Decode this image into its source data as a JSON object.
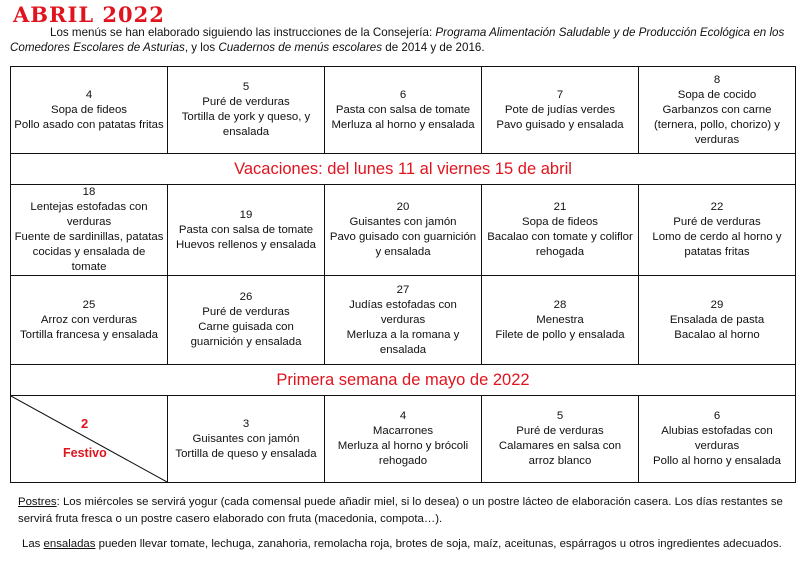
{
  "title": "ABRIL 2022",
  "intro": {
    "p1": "Los menús se han elaborado siguiendo las instrucciones de la Consejería: ",
    "i1": "Programa Alimentación Saludable y de Producción Ecológica en los Comedores Escolares de Asturias",
    "p2": ", y los ",
    "i2": "Cuadernos de menús escolares",
    "p3": " de 2014 y de 2016."
  },
  "weeks": [
    [
      {
        "day": "4",
        "lines": [
          "Sopa de fideos",
          "Pollo asado con patatas fritas"
        ]
      },
      {
        "day": "5",
        "lines": [
          "Puré de verduras",
          "Tortilla de york y queso, y ensalada"
        ]
      },
      {
        "day": "6",
        "lines": [
          "Pasta con salsa de tomate",
          "Merluza al horno y ensalada"
        ]
      },
      {
        "day": "7",
        "lines": [
          "Pote de judías verdes",
          "Pavo guisado y ensalada"
        ]
      },
      {
        "day": "8",
        "lines": [
          "Sopa de cocido",
          "Garbanzos con carne (ternera, pollo, chorizo) y verduras"
        ]
      }
    ],
    [
      {
        "day": "18",
        "lines": [
          "Lentejas estofadas con verduras",
          "Fuente de sardinillas, patatas cocidas y ensalada de tomate"
        ]
      },
      {
        "day": "19",
        "lines": [
          "Pasta con salsa de tomate",
          "Huevos rellenos y ensalada"
        ]
      },
      {
        "day": "20",
        "lines": [
          "Guisantes con jamón",
          "Pavo guisado con guarnición y ensalada"
        ]
      },
      {
        "day": "21",
        "lines": [
          "Sopa de fideos",
          "Bacalao con tomate y coliflor rehogada"
        ]
      },
      {
        "day": "22",
        "lines": [
          "Puré de verduras",
          "Lomo de cerdo al horno y patatas fritas"
        ]
      }
    ],
    [
      {
        "day": "25",
        "lines": [
          "Arroz con verduras",
          "Tortilla francesa y ensalada"
        ]
      },
      {
        "day": "26",
        "lines": [
          "Puré de verduras",
          "Carne guisada con guarnición y ensalada"
        ]
      },
      {
        "day": "27",
        "lines": [
          "Judías estofadas con verduras",
          "Merluza a la romana y ensalada"
        ]
      },
      {
        "day": "28",
        "lines": [
          "Menestra",
          "Filete de pollo y ensalada"
        ]
      },
      {
        "day": "29",
        "lines": [
          "Ensalada de pasta",
          "Bacalao al horno"
        ]
      }
    ],
    [
      {
        "day": "3",
        "lines": [
          "Guisantes con jamón",
          "Tortilla de queso y ensalada"
        ]
      },
      {
        "day": "4",
        "lines": [
          "Macarrones",
          "Merluza al horno y brócoli rehogado"
        ]
      },
      {
        "day": "5",
        "lines": [
          "Puré de verduras",
          "Calamares en salsa con arroz blanco"
        ]
      },
      {
        "day": "6",
        "lines": [
          "Alubias estofadas con verduras",
          "Pollo al horno y ensalada"
        ]
      }
    ]
  ],
  "banner1": "Vacaciones: del lunes 11 al viernes 15 de abril",
  "banner2": "Primera semana de mayo de 2022",
  "holiday": {
    "day": "2",
    "label": "Festivo"
  },
  "footer": {
    "postres_label": "Postres",
    "postres_text": ": Los miércoles se servirá yogur (cada comensal puede añadir miel, si lo desea) o un postre lácteo de elaboración casera. Los días restantes se servirá fruta fresca o un postre casero elaborado con fruta (macedonia, compota…).",
    "ens_pre": "Las ",
    "ens_label": "ensaladas",
    "ens_text": " pueden llevar tomate, lechuga, zanahoria, remolacha roja, brotes de soja, maíz, aceitunas, espárragos u otros ingredientes adecuados."
  },
  "colors": {
    "accent": "#e0141e"
  }
}
